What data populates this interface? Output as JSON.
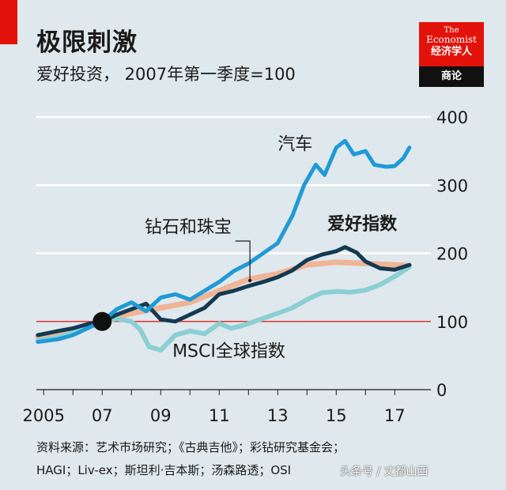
{
  "header": {
    "title": "极限刺激",
    "subtitle": "爱好投资， 2007年第一季度=100"
  },
  "logo": {
    "line1": "The",
    "line2": "Economist",
    "line3": "经济学人",
    "band": "商论"
  },
  "colors": {
    "background": "#dfe8ec",
    "brand_red": "#e3120b",
    "cars": "#1f9ad6",
    "hobby_index": "#123a52",
    "msci": "#8ccfd3",
    "diamonds": "#f0b496",
    "baseline": "#e3120b"
  },
  "chart_data": {
    "type": "line",
    "title": "极限刺激",
    "subtitle": "爱好投资， 2007年第一季度=100",
    "x_tick_labels": [
      "2005",
      "07",
      "09",
      "11",
      "13",
      "15",
      "17"
    ],
    "x_ticks": [
      2005,
      2007,
      2009,
      2011,
      2013,
      2015,
      2017
    ],
    "xlim": [
      2004.75,
      2018.1
    ],
    "ylim": [
      0,
      400
    ],
    "y_ticks": [
      0,
      100,
      200,
      300,
      400
    ],
    "y_tick_labels": [
      "0",
      "100",
      "200",
      "300",
      "400"
    ],
    "baseline_value": 100,
    "base_point": {
      "x": 2007.0,
      "y": 100
    },
    "grid": "horizontal",
    "series": [
      {
        "name": "钻石和珠宝",
        "color_key": "diamonds",
        "x": [
          2004.8,
          2005.5,
          2006.5,
          2007.0,
          2008.0,
          2009.0,
          2010.0,
          2011.0,
          2012.0,
          2013.0,
          2014.0,
          2015.0,
          2016.0,
          2017.0,
          2017.5
        ],
        "values": [
          78,
          85,
          93,
          100,
          112,
          120,
          128,
          145,
          162,
          170,
          183,
          187,
          185,
          183,
          182
        ]
      },
      {
        "name": "MSCI全球指数",
        "color_key": "msci",
        "x": [
          2004.8,
          2005.5,
          2006.0,
          2006.5,
          2007.0,
          2007.5,
          2008.0,
          2008.3,
          2008.6,
          2009.0,
          2009.5,
          2010.0,
          2010.5,
          2011.0,
          2011.4,
          2011.8,
          2012.2,
          2012.6,
          2013.0,
          2013.5,
          2014.0,
          2014.5,
          2015.0,
          2015.5,
          2016.0,
          2016.5,
          2017.0,
          2017.5
        ],
        "values": [
          72,
          77,
          84,
          93,
          100,
          104,
          100,
          88,
          63,
          58,
          80,
          86,
          82,
          97,
          90,
          94,
          100,
          106,
          112,
          120,
          132,
          142,
          144,
          143,
          146,
          154,
          166,
          180
        ]
      },
      {
        "name": "爱好指数",
        "color_key": "hobby_index",
        "x": [
          2004.8,
          2005.5,
          2006.0,
          2006.5,
          2007.0,
          2007.5,
          2008.0,
          2008.5,
          2009.0,
          2009.5,
          2010.0,
          2010.5,
          2011.0,
          2011.5,
          2012.0,
          2012.5,
          2013.0,
          2013.5,
          2014.0,
          2014.5,
          2015.0,
          2015.3,
          2015.7,
          2016.0,
          2016.5,
          2017.0,
          2017.5
        ],
        "values": [
          80,
          86,
          90,
          96,
          100,
          110,
          118,
          126,
          103,
          100,
          110,
          120,
          140,
          145,
          152,
          158,
          165,
          175,
          190,
          198,
          203,
          209,
          201,
          188,
          178,
          176,
          183
        ]
      },
      {
        "name": "汽车",
        "color_key": "cars",
        "x": [
          2004.8,
          2005.5,
          2006.0,
          2006.5,
          2007.0,
          2007.5,
          2008.0,
          2008.5,
          2009.0,
          2009.5,
          2010.0,
          2010.5,
          2011.0,
          2011.5,
          2012.0,
          2012.5,
          2013.0,
          2013.5,
          2013.9,
          2014.3,
          2014.6,
          2015.0,
          2015.3,
          2015.6,
          2016.0,
          2016.3,
          2016.7,
          2017.0,
          2017.3,
          2017.5
        ],
        "values": [
          70,
          74,
          80,
          90,
          100,
          118,
          128,
          115,
          135,
          140,
          132,
          145,
          158,
          174,
          185,
          200,
          215,
          255,
          300,
          330,
          315,
          355,
          365,
          345,
          350,
          330,
          327,
          328,
          340,
          355
        ]
      }
    ],
    "annotations": [
      {
        "text": "汽车",
        "series": "汽车"
      },
      {
        "text": "钻石和珠宝",
        "series": "钻石和珠宝"
      },
      {
        "text": "爱好指数",
        "series": "爱好指数"
      },
      {
        "text": "MSCI全球指数",
        "series": "MSCI全球指数"
      }
    ]
  },
  "source": {
    "line1": "资料来源：艺术市场研究；《古典吉他》；彩钻研究基金会；",
    "line2": "HAGI；Liv-ex；斯坦利·吉本斯；汤森路透；OSI"
  },
  "watermark": {
    "text": "头条号 / 丈都山西"
  }
}
